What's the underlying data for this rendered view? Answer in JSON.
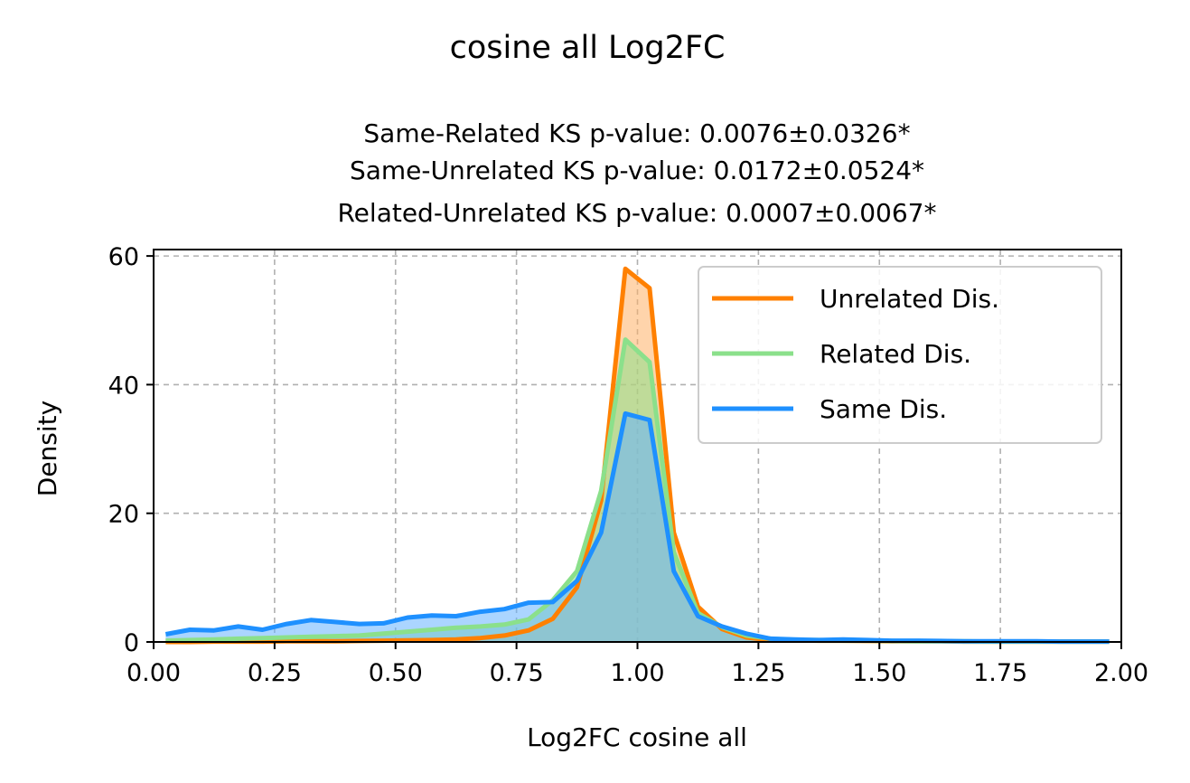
{
  "figure": {
    "suptitle": "cosine all Log2FC",
    "subtitle_lines": [
      "Same-Related KS p-value: 0.0076±0.0326*",
      "Same-Unrelated KS p-value: 0.0172±0.0524*",
      "Related-Unrelated KS p-value: 0.0007±0.0067*"
    ]
  },
  "chart_data": {
    "type": "area",
    "title": "Same-Related KS p-value: 0.0076±0.0326*\nSame-Unrelated KS p-value: 0.0172±0.0524*\nRelated-Unrelated KS p-value: 0.0007±0.0067*",
    "xlabel": "Log2FC cosine all",
    "ylabel": "Density",
    "xlim": [
      0,
      2
    ],
    "ylim": [
      0,
      61
    ],
    "xticks": [
      0.0,
      0.25,
      0.5,
      0.75,
      1.0,
      1.25,
      1.5,
      1.75,
      2.0
    ],
    "xtick_labels": [
      "0.00",
      "0.25",
      "0.50",
      "0.75",
      "1.00",
      "1.25",
      "1.50",
      "1.75",
      "2.00"
    ],
    "yticks": [
      0,
      20,
      40,
      60
    ],
    "ytick_labels": [
      "0",
      "20",
      "40",
      "60"
    ],
    "grid": true,
    "legend_position": "upper right",
    "series": [
      {
        "name": "Unrelated Dis.",
        "color": "#FF8000",
        "fill_color": "#FFB066",
        "x": [
          0.025,
          0.075,
          0.125,
          0.175,
          0.225,
          0.275,
          0.325,
          0.375,
          0.425,
          0.475,
          0.525,
          0.575,
          0.625,
          0.675,
          0.725,
          0.775,
          0.825,
          0.875,
          0.925,
          0.975,
          1.025,
          1.075,
          1.125,
          1.175,
          1.225,
          1.275,
          1.325,
          1.375,
          1.425,
          1.475,
          1.525,
          1.575,
          1.625,
          1.675,
          1.725,
          1.775,
          1.825,
          1.875,
          1.925,
          1.975
        ],
        "y": [
          0.0,
          0.0,
          0.05,
          0.05,
          0.05,
          0.1,
          0.1,
          0.1,
          0.15,
          0.2,
          0.25,
          0.3,
          0.4,
          0.6,
          1.0,
          1.8,
          3.6,
          8.5,
          22.0,
          58.0,
          55.0,
          17.0,
          5.5,
          2.0,
          0.7,
          0.3,
          0.25,
          0.2,
          0.2,
          0.15,
          0.1,
          0.1,
          0.1,
          0.05,
          0.05,
          0.05,
          0.05,
          0.05,
          0.05,
          0.05
        ]
      },
      {
        "name": "Related Dis.",
        "color": "#8BE08B",
        "fill_color": "#8BE08B",
        "x": [
          0.025,
          0.075,
          0.125,
          0.175,
          0.225,
          0.275,
          0.325,
          0.375,
          0.425,
          0.475,
          0.525,
          0.575,
          0.625,
          0.675,
          0.725,
          0.775,
          0.825,
          0.875,
          0.925,
          0.975,
          1.025,
          1.075,
          1.125,
          1.175,
          1.225,
          1.275,
          1.325,
          1.375,
          1.425,
          1.475,
          1.525,
          1.575,
          1.625,
          1.675,
          1.725,
          1.775,
          1.825,
          1.875,
          1.925,
          1.975
        ],
        "y": [
          0.2,
          0.3,
          0.4,
          0.5,
          0.6,
          0.7,
          0.8,
          0.9,
          1.0,
          1.3,
          1.6,
          1.9,
          2.2,
          2.4,
          2.7,
          3.5,
          6.5,
          11.0,
          23.5,
          47.0,
          43.5,
          14.0,
          4.5,
          2.3,
          1.0,
          0.5,
          0.3,
          0.3,
          0.2,
          0.2,
          0.15,
          0.1,
          0.1,
          0.1,
          0.05,
          0.05,
          0.05,
          0.05,
          0.05,
          0.05
        ]
      },
      {
        "name": "Same Dis.",
        "color": "#1E90FF",
        "fill_color": "#66B2FF",
        "x": [
          0.025,
          0.075,
          0.125,
          0.175,
          0.225,
          0.275,
          0.325,
          0.375,
          0.425,
          0.475,
          0.525,
          0.575,
          0.625,
          0.675,
          0.725,
          0.775,
          0.825,
          0.875,
          0.925,
          0.975,
          1.025,
          1.075,
          1.125,
          1.175,
          1.225,
          1.275,
          1.325,
          1.375,
          1.425,
          1.475,
          1.525,
          1.575,
          1.625,
          1.675,
          1.725,
          1.775,
          1.825,
          1.875,
          1.925,
          1.975
        ],
        "y": [
          1.2,
          1.9,
          1.8,
          2.4,
          1.9,
          2.8,
          3.4,
          3.1,
          2.8,
          2.9,
          3.8,
          4.1,
          4.0,
          4.7,
          5.1,
          6.1,
          6.2,
          9.5,
          17.0,
          35.5,
          34.5,
          11.0,
          4.0,
          2.4,
          1.3,
          0.5,
          0.4,
          0.3,
          0.4,
          0.3,
          0.2,
          0.2,
          0.15,
          0.1,
          0.1,
          0.1,
          0.1,
          0.05,
          0.05,
          0.05
        ]
      }
    ]
  }
}
